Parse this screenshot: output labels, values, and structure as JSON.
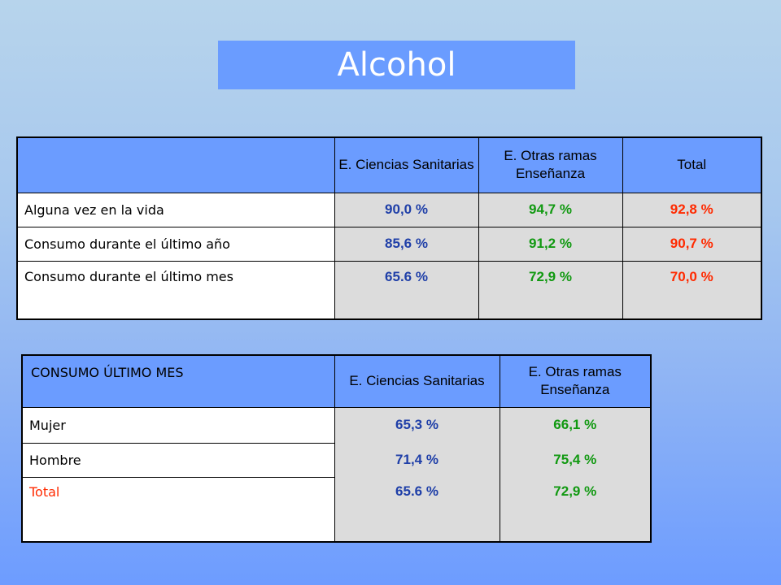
{
  "title": "Alcohol",
  "table1": {
    "headers": [
      "",
      "E. Ciencias Sanitarias",
      "E. Otras ramas Enseñanza",
      "Total"
    ],
    "rows": [
      {
        "label": "Alguna vez en la vida",
        "values": [
          "90,0 %",
          "94,7 %",
          "92,8 %"
        ]
      },
      {
        "label": "Consumo durante el último año",
        "values": [
          "85,6 %",
          "91,2 %",
          "90,7 %"
        ]
      },
      {
        "label": "Consumo durante el último mes",
        "values": [
          "65.6 %",
          "72,9 %",
          "70,0 %"
        ]
      }
    ]
  },
  "table2": {
    "headers": [
      "CONSUMO ÚLTIMO MES",
      "E. Ciencias Sanitarias",
      "E. Otras ramas Enseñanza"
    ],
    "rows": [
      {
        "label": "Mujer",
        "values": [
          "65,3 %",
          "66,1 %"
        ]
      },
      {
        "label": "Hombre",
        "values": [
          "71,4 %",
          "75,4 %"
        ]
      },
      {
        "label": "Total",
        "values": [
          "65.6 %",
          "72,9 %"
        ]
      }
    ]
  },
  "colors": {
    "col1": "#1f3fa8",
    "col2": "#119911",
    "col3": "#ff2a00",
    "header_bg": "#6b9cff",
    "value_bg": "#dcdcdc"
  }
}
